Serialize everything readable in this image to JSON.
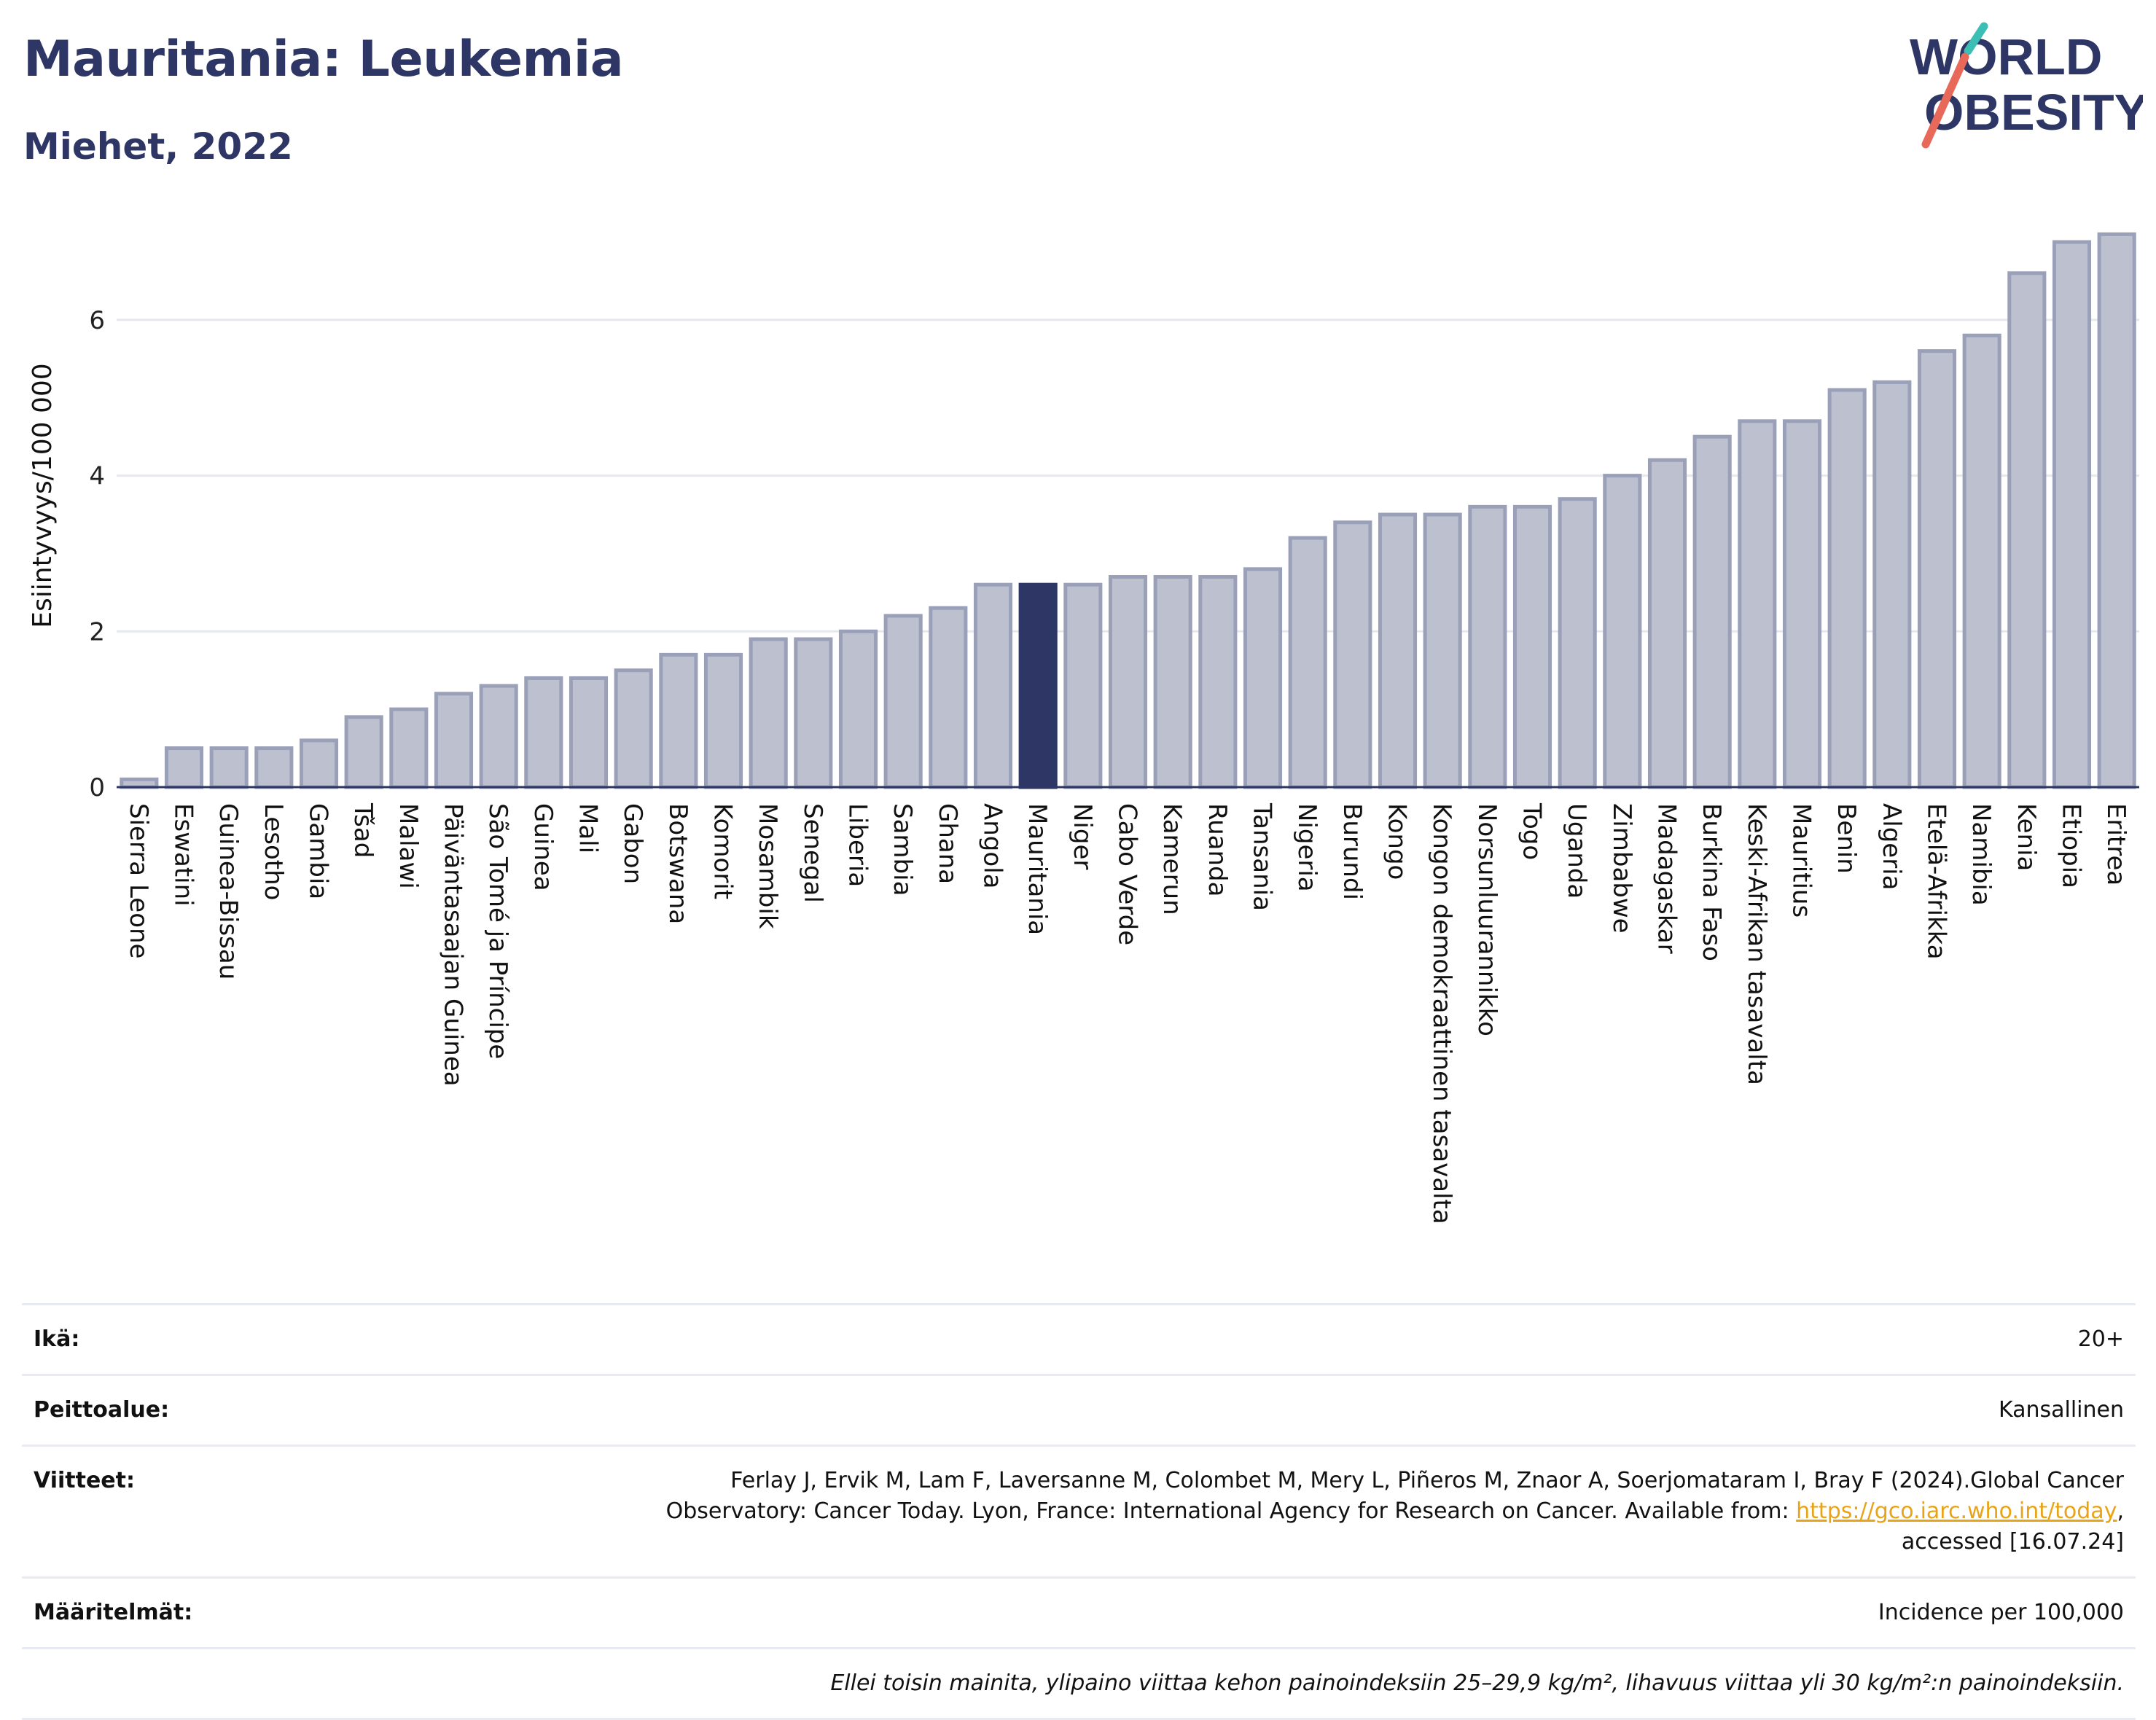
{
  "header": {
    "title": "Mauritania: Leukemia",
    "subtitle": "Miehet, 2022",
    "logo_text_1": "WORLD",
    "logo_text_2": "OBESITY"
  },
  "colors": {
    "bar": "#bcc0cf",
    "bar_border": "#9aa0b8",
    "highlight": "#2d3664",
    "title": "#2d3664",
    "grid": "#e6e8ef",
    "logo_teal": "#3bbfb5",
    "logo_red": "#e8685a"
  },
  "chart_data": {
    "type": "bar",
    "title": "",
    "xlabel": "",
    "ylabel": "Esiintyvyys/100 000",
    "ylim": [
      0,
      7.3
    ],
    "yticks": [
      0,
      2,
      4,
      6
    ],
    "grid": true,
    "highlight_category": "Mauritania",
    "categories": [
      "Sierra Leone",
      "Eswatini",
      "Guinea-Bissau",
      "Lesotho",
      "Gambia",
      "Tšad",
      "Malawi",
      "Päiväntasaajan Guinea",
      "São Tomé ja Príncipe",
      "Guinea",
      "Mali",
      "Gabon",
      "Botswana",
      "Komorit",
      "Mosambik",
      "Senegal",
      "Liberia",
      "Sambia",
      "Ghana",
      "Angola",
      "Mauritania",
      "Niger",
      "Cabo Verde",
      "Kamerun",
      "Ruanda",
      "Tansania",
      "Nigeria",
      "Burundi",
      "Kongo",
      "Kongon demokraattinen tasavalta",
      "Norsunluurannikko",
      "Togo",
      "Uganda",
      "Zimbabwe",
      "Madagaskar",
      "Burkina Faso",
      "Keski-Afrikan tasavalta",
      "Mauritius",
      "Benin",
      "Algeria",
      "Etelä-Afrikka",
      "Namibia",
      "Kenia",
      "Etiopia",
      "Eritrea"
    ],
    "values": [
      0.1,
      0.5,
      0.5,
      0.5,
      0.6,
      0.9,
      1.0,
      1.2,
      1.3,
      1.4,
      1.4,
      1.5,
      1.7,
      1.7,
      1.9,
      1.9,
      2.0,
      2.2,
      2.3,
      2.6,
      2.6,
      2.6,
      2.7,
      2.7,
      2.7,
      2.8,
      3.2,
      3.4,
      3.5,
      3.5,
      3.6,
      3.6,
      3.7,
      4.0,
      4.2,
      4.5,
      4.7,
      4.7,
      5.1,
      5.2,
      5.6,
      5.8,
      6.6,
      7.0,
      7.1
    ]
  },
  "info": {
    "age_label": "Ikä:",
    "age_value": "20+",
    "coverage_label": "Peittoalue:",
    "coverage_value": "Kansallinen",
    "refs_label": "Viitteet:",
    "refs_text_1": "Ferlay J, Ervik M, Lam F, Laversanne M, Colombet M, Mery L, Piñeros M, Znaor A, Soerjomataram I, Bray F (2024).Global Cancer",
    "refs_text_2": "Observatory: Cancer Today. Lyon, France: International Agency for Research on Cancer. Available from:",
    "refs_link": "https://gco.iarc.who.int/today",
    "refs_text_3": ",",
    "refs_text_4": "accessed [16.07.24]",
    "definitions_label": "Määritelmät:",
    "definitions_value": "Incidence per 100,000",
    "note": "Ellei toisin mainita, ylipaino viittaa kehon painoindeksiin 25–29,9 kg/m², lihavuus viittaa yli 30 kg/m²:n painoindeksiin."
  }
}
